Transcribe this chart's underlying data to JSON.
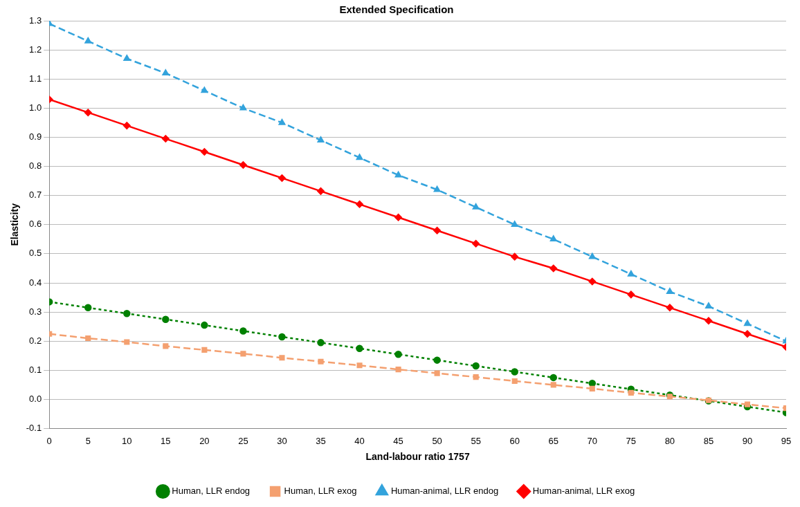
{
  "chart_data": {
    "type": "line",
    "title": "Extended Specification",
    "xlabel": "Land-labour ratio 1757",
    "ylabel": "Elasticity",
    "x": [
      0,
      5,
      10,
      15,
      20,
      25,
      30,
      35,
      40,
      45,
      50,
      55,
      60,
      65,
      70,
      75,
      80,
      85,
      90,
      95
    ],
    "xlim": [
      0,
      95
    ],
    "xticks": [
      0,
      5,
      10,
      15,
      20,
      25,
      30,
      35,
      40,
      45,
      50,
      55,
      60,
      65,
      70,
      75,
      80,
      85,
      90,
      95
    ],
    "ylim": [
      -0.1,
      1.3
    ],
    "yticks": [
      -0.1,
      {
        "value": 0,
        "label": "0.0"
      },
      0.1,
      0.2,
      0.3,
      0.4,
      0.5,
      0.6,
      0.7,
      0.8,
      0.9,
      {
        "value": 1,
        "label": "1.0"
      },
      1.1,
      1.2,
      1.3
    ],
    "grid": "y",
    "legend": "bottom",
    "series": [
      {
        "name": "Human, LLR endog",
        "color": "#008000",
        "marker": "circle",
        "line_style": "dotted",
        "values": [
          0.335,
          0.315,
          0.295,
          0.275,
          0.255,
          0.235,
          0.215,
          0.195,
          0.175,
          0.155,
          0.135,
          0.115,
          0.095,
          0.075,
          0.055,
          0.035,
          0.015,
          -0.005,
          -0.025,
          -0.045
        ]
      },
      {
        "name": "Human, LLR exog",
        "color": "#f4a070",
        "marker": "square",
        "line_style": "dashed",
        "values": [
          0.225,
          0.21,
          0.197,
          0.183,
          0.17,
          0.157,
          0.143,
          0.13,
          0.117,
          0.103,
          0.09,
          0.077,
          0.063,
          0.05,
          0.037,
          0.023,
          0.01,
          -0.003,
          -0.017,
          -0.03
        ]
      },
      {
        "name": "Human-animal, LLR endog",
        "color": "#33a3dc",
        "marker": "triangle",
        "line_style": "dashed",
        "values": [
          1.29,
          1.23,
          1.17,
          1.12,
          1.06,
          1.0,
          0.95,
          0.89,
          0.83,
          0.77,
          0.72,
          0.66,
          0.6,
          0.55,
          0.49,
          0.43,
          0.37,
          0.32,
          0.26,
          0.2
        ]
      },
      {
        "name": "Human-animal, LLR exog",
        "color": "#ff0000",
        "marker": "diamond",
        "line_style": "solid",
        "values": [
          1.03,
          0.985,
          0.94,
          0.895,
          0.85,
          0.805,
          0.76,
          0.715,
          0.67,
          0.625,
          0.58,
          0.535,
          0.49,
          0.45,
          0.405,
          0.36,
          0.315,
          0.27,
          0.225,
          0.18
        ]
      }
    ]
  }
}
